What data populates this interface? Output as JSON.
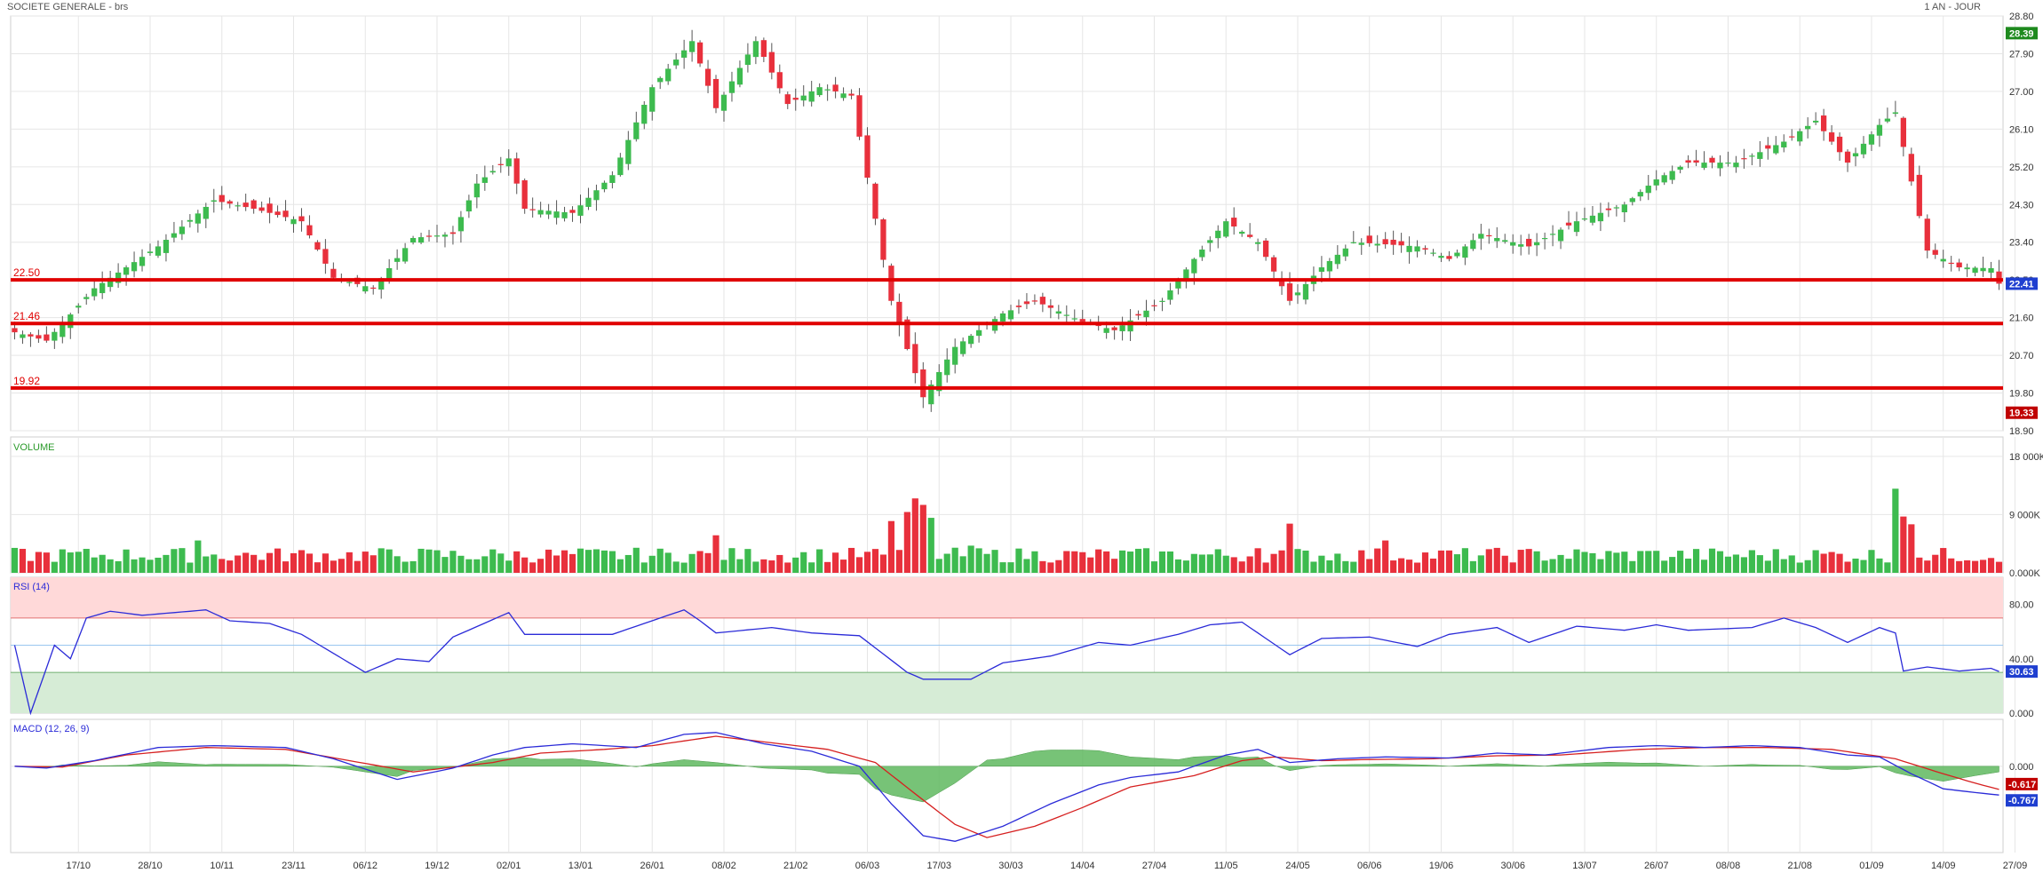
{
  "header": {
    "title": "SOCIETE GENERALE - brs",
    "period": "1 AN - JOUR"
  },
  "colors": {
    "up": "#3dbb4f",
    "down": "#e8303c",
    "support": "#e00000",
    "grid": "#e6e6e6",
    "rsi_upper_zone": "#ffd9d9",
    "rsi_lower_zone": "#d6ecd6",
    "line_blue": "#2b2bd8",
    "line_red": "#d62020",
    "hist_green": "#5fb85f",
    "badge_green": "#1e8a1e",
    "badge_red": "#c00000",
    "badge_blue": "#1f3fd0"
  },
  "chart_data": [
    {
      "type": "candlestick",
      "panel": "price",
      "title": "SOCIETE GENERALE - brs",
      "x_ticks": [
        "17/10",
        "28/10",
        "10/11",
        "23/11",
        "06/12",
        "19/12",
        "02/01",
        "13/01",
        "26/01",
        "08/02",
        "21/02",
        "06/03",
        "17/03",
        "30/03",
        "14/04",
        "27/04",
        "11/05",
        "24/05",
        "06/06",
        "19/06",
        "30/06",
        "13/07",
        "26/07",
        "08/08",
        "21/08",
        "01/09",
        "14/09",
        "27/09"
      ],
      "y_ticks": [
        "28.80",
        "27.90",
        "27.00",
        "26.10",
        "25.20",
        "24.30",
        "23.40",
        "22.50",
        "21.60",
        "20.70",
        "19.80",
        "18.90"
      ],
      "ylim": [
        18.9,
        28.8
      ],
      "support_lines": [
        {
          "label": "22.50",
          "value": 22.5
        },
        {
          "label": "21.46",
          "value": 21.46
        },
        {
          "label": "19.92",
          "value": 19.92
        }
      ],
      "badges": [
        {
          "text": "28.39",
          "value": 28.39,
          "kind": "high"
        },
        {
          "text": "22.41",
          "value": 22.41,
          "kind": "last"
        },
        {
          "text": "19.33",
          "value": 19.33,
          "kind": "low"
        }
      ],
      "close_anchors": [
        [
          0,
          21.25
        ],
        [
          4,
          21.05
        ],
        [
          10,
          22.3
        ],
        [
          18,
          23.3
        ],
        [
          25,
          24.4
        ],
        [
          30,
          24.2
        ],
        [
          36,
          23.9
        ],
        [
          40,
          22.55
        ],
        [
          45,
          22.3
        ],
        [
          50,
          23.5
        ],
        [
          55,
          23.6
        ],
        [
          58,
          24.8
        ],
        [
          62,
          25.4
        ],
        [
          64,
          24.2
        ],
        [
          70,
          24.1
        ],
        [
          75,
          25.0
        ],
        [
          80,
          27.1
        ],
        [
          85,
          28.2
        ],
        [
          88,
          26.6
        ],
        [
          93,
          28.2
        ],
        [
          97,
          26.7
        ],
        [
          101,
          27.1
        ],
        [
          105,
          26.9
        ],
        [
          110,
          22.0
        ],
        [
          114,
          19.7
        ],
        [
          118,
          20.9
        ],
        [
          124,
          21.7
        ],
        [
          128,
          22.0
        ],
        [
          134,
          21.5
        ],
        [
          138,
          21.3
        ],
        [
          144,
          22.0
        ],
        [
          148,
          23.0
        ],
        [
          152,
          23.9
        ],
        [
          156,
          23.4
        ],
        [
          160,
          22.0
        ],
        [
          164,
          22.8
        ],
        [
          168,
          23.4
        ],
        [
          176,
          23.3
        ],
        [
          180,
          23.0
        ],
        [
          184,
          23.6
        ],
        [
          190,
          23.3
        ],
        [
          196,
          23.9
        ],
        [
          202,
          24.3
        ],
        [
          206,
          24.9
        ],
        [
          210,
          25.3
        ],
        [
          216,
          25.3
        ],
        [
          222,
          25.8
        ],
        [
          226,
          26.3
        ],
        [
          230,
          25.3
        ],
        [
          234,
          26.2
        ],
        [
          236,
          26.5
        ],
        [
          240,
          23.2
        ],
        [
          244,
          22.8
        ],
        [
          248,
          22.78
        ],
        [
          249,
          22.41
        ]
      ]
    },
    {
      "type": "bar",
      "panel": "volume",
      "title": "VOLUME",
      "y_ticks": [
        "18 000K",
        "9 000K",
        "0.000K"
      ],
      "ylim": [
        0,
        21000
      ],
      "units": "K",
      "spikes": [
        [
          23,
          5000
        ],
        [
          88,
          5800
        ],
        [
          110,
          8000
        ],
        [
          112,
          9400
        ],
        [
          113,
          11500
        ],
        [
          114,
          10500
        ],
        [
          115,
          8500
        ],
        [
          120,
          4200
        ],
        [
          156,
          3800
        ],
        [
          160,
          7600
        ],
        [
          172,
          5000
        ],
        [
          206,
          3400
        ],
        [
          236,
          13000
        ],
        [
          237,
          8700
        ],
        [
          238,
          7500
        ]
      ],
      "base_volume": 2600
    },
    {
      "type": "line",
      "panel": "rsi",
      "title": "RSI (14)",
      "y_ticks": [
        "80.00",
        "40.00",
        "0.000"
      ],
      "ylim": [
        0,
        100
      ],
      "zones": [
        {
          "from": 70,
          "to": 100,
          "kind": "overbought"
        },
        {
          "from": 0,
          "to": 30,
          "kind": "oversold"
        }
      ],
      "reference_lines": [
        50
      ],
      "badge": {
        "text": "30.63",
        "value": 30.63
      },
      "anchors": [
        [
          0,
          50
        ],
        [
          2,
          0
        ],
        [
          5,
          50
        ],
        [
          7,
          40
        ],
        [
          9,
          70
        ],
        [
          12,
          75
        ],
        [
          16,
          72
        ],
        [
          24,
          76
        ],
        [
          27,
          68
        ],
        [
          32,
          66
        ],
        [
          36,
          58
        ],
        [
          44,
          30
        ],
        [
          48,
          40
        ],
        [
          52,
          38
        ],
        [
          55,
          56
        ],
        [
          62,
          74
        ],
        [
          64,
          58
        ],
        [
          70,
          58
        ],
        [
          75,
          58
        ],
        [
          84,
          76
        ],
        [
          86,
          68
        ],
        [
          88,
          59
        ],
        [
          95,
          63
        ],
        [
          100,
          59
        ],
        [
          106,
          57
        ],
        [
          112,
          30
        ],
        [
          114,
          25
        ],
        [
          120,
          25
        ],
        [
          124,
          37
        ],
        [
          130,
          42
        ],
        [
          136,
          52
        ],
        [
          140,
          50
        ],
        [
          146,
          58
        ],
        [
          150,
          65
        ],
        [
          154,
          67
        ],
        [
          160,
          43
        ],
        [
          164,
          55
        ],
        [
          170,
          56
        ],
        [
          176,
          49
        ],
        [
          180,
          58
        ],
        [
          186,
          63
        ],
        [
          190,
          52
        ],
        [
          196,
          64
        ],
        [
          202,
          61
        ],
        [
          206,
          65
        ],
        [
          210,
          61
        ],
        [
          218,
          63
        ],
        [
          222,
          70
        ],
        [
          226,
          63
        ],
        [
          230,
          52
        ],
        [
          234,
          63
        ],
        [
          236,
          59
        ],
        [
          237,
          31
        ],
        [
          240,
          34
        ],
        [
          244,
          31
        ],
        [
          248,
          33
        ],
        [
          249,
          30.63
        ]
      ]
    },
    {
      "type": "line",
      "panel": "macd",
      "title": "MACD (12, 26, 9)",
      "y_ticks": [
        "0.000"
      ],
      "ylim": [
        -2.3,
        1.25
      ],
      "series_badges": [
        {
          "text": "-0.617",
          "value": -0.617,
          "series": "signal"
        },
        {
          "text": "-0.767",
          "value": -0.767,
          "series": "macd"
        }
      ],
      "macd_anchors": [
        [
          0,
          0.0
        ],
        [
          4,
          -0.05
        ],
        [
          10,
          0.15
        ],
        [
          18,
          0.5
        ],
        [
          25,
          0.55
        ],
        [
          34,
          0.5
        ],
        [
          40,
          0.2
        ],
        [
          48,
          -0.35
        ],
        [
          55,
          -0.05
        ],
        [
          60,
          0.3
        ],
        [
          64,
          0.5
        ],
        [
          70,
          0.6
        ],
        [
          78,
          0.5
        ],
        [
          84,
          0.85
        ],
        [
          88,
          0.9
        ],
        [
          94,
          0.6
        ],
        [
          100,
          0.4
        ],
        [
          106,
          0.0
        ],
        [
          110,
          -1.0
        ],
        [
          114,
          -1.85
        ],
        [
          118,
          -2.0
        ],
        [
          124,
          -1.6
        ],
        [
          130,
          -1.0
        ],
        [
          136,
          -0.5
        ],
        [
          140,
          -0.3
        ],
        [
          146,
          -0.15
        ],
        [
          152,
          0.3
        ],
        [
          156,
          0.45
        ],
        [
          160,
          0.1
        ],
        [
          166,
          0.2
        ],
        [
          172,
          0.25
        ],
        [
          180,
          0.22
        ],
        [
          186,
          0.35
        ],
        [
          192,
          0.3
        ],
        [
          200,
          0.5
        ],
        [
          206,
          0.55
        ],
        [
          212,
          0.5
        ],
        [
          218,
          0.55
        ],
        [
          224,
          0.5
        ],
        [
          230,
          0.3
        ],
        [
          234,
          0.25
        ],
        [
          238,
          -0.2
        ],
        [
          242,
          -0.6
        ],
        [
          246,
          -0.7
        ],
        [
          249,
          -0.767
        ]
      ],
      "signal_anchors": [
        [
          0,
          0.0
        ],
        [
          6,
          -0.02
        ],
        [
          14,
          0.3
        ],
        [
          24,
          0.5
        ],
        [
          34,
          0.45
        ],
        [
          42,
          0.15
        ],
        [
          50,
          -0.15
        ],
        [
          60,
          0.1
        ],
        [
          66,
          0.35
        ],
        [
          74,
          0.45
        ],
        [
          80,
          0.55
        ],
        [
          88,
          0.8
        ],
        [
          96,
          0.6
        ],
        [
          102,
          0.45
        ],
        [
          108,
          0.1
        ],
        [
          114,
          -0.9
        ],
        [
          118,
          -1.55
        ],
        [
          122,
          -1.9
        ],
        [
          128,
          -1.6
        ],
        [
          134,
          -1.1
        ],
        [
          140,
          -0.55
        ],
        [
          148,
          -0.25
        ],
        [
          154,
          0.15
        ],
        [
          158,
          0.25
        ],
        [
          164,
          0.15
        ],
        [
          170,
          0.18
        ],
        [
          178,
          0.2
        ],
        [
          186,
          0.28
        ],
        [
          194,
          0.3
        ],
        [
          204,
          0.45
        ],
        [
          212,
          0.5
        ],
        [
          220,
          0.5
        ],
        [
          228,
          0.45
        ],
        [
          236,
          0.2
        ],
        [
          242,
          -0.2
        ],
        [
          246,
          -0.45
        ],
        [
          249,
          -0.617
        ]
      ]
    }
  ]
}
